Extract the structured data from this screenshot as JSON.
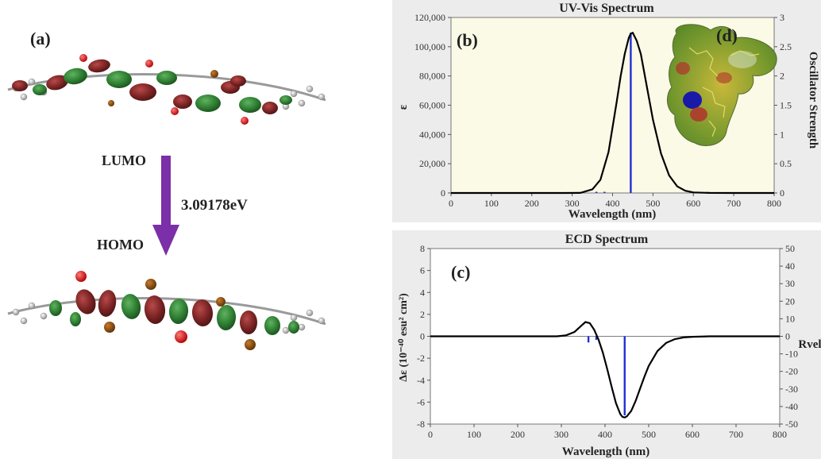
{
  "panel_a": {
    "label": "(a)",
    "lumo_label": "LUMO",
    "homo_label": "HOMO",
    "gap_label": "3.09178eV",
    "colors": {
      "arrow": "#7b2fa8",
      "lobe_red": "#7a2323",
      "lobe_green": "#2e7d32"
    }
  },
  "chart_data": [
    {
      "type": "line",
      "panel_label": "(b)",
      "inset_label": "(d)",
      "title": "UV-Vis Spectrum",
      "xlabel": "Wavelength (nm)",
      "ylabel": "ε",
      "y2label": "Oscillator Strength",
      "xlim": [
        0,
        800
      ],
      "ylim": [
        0,
        120000
      ],
      "y2lim": [
        0,
        3
      ],
      "xticks": [
        "0",
        "100",
        "200",
        "300",
        "400",
        "500",
        "600",
        "700",
        "800"
      ],
      "yticks": [
        "0",
        "20,000",
        "40,000",
        "60,000",
        "80,000",
        "100,000",
        "120,000"
      ],
      "y2ticks": [
        "0",
        "0.5",
        "1",
        "1.5",
        "2",
        "2.5",
        "3"
      ],
      "series": [
        {
          "x": [
            0,
            280,
            320,
            350,
            370,
            390,
            410,
            420,
            430,
            440,
            445,
            450,
            460,
            470,
            480,
            490,
            500,
            520,
            540,
            560,
            580,
            600,
            640,
            700,
            800
          ],
          "y": [
            0,
            0,
            60,
            2500,
            9000,
            28000,
            62000,
            80000,
            95000,
            106000,
            109000,
            109500,
            104000,
            95000,
            80000,
            65000,
            50000,
            27000,
            12000,
            4500,
            1500,
            400,
            50,
            0,
            0
          ]
        }
      ],
      "sticks": [
        {
          "x": 360,
          "f": 0.02
        },
        {
          "x": 380,
          "f": 0.02
        },
        {
          "x": 445,
          "f": 2.74
        }
      ],
      "colors": {
        "background": "#fbfae6",
        "curve": "#000000",
        "stick": "#1f2fd6"
      }
    },
    {
      "type": "line",
      "panel_label": "(c)",
      "title": "ECD Spectrum",
      "xlabel": "Wavelength (nm)",
      "ylabel": "Δε (10⁻⁴⁰ esu² cm²)",
      "y2label": "Rvel",
      "xlim": [
        0,
        800
      ],
      "ylim": [
        -8,
        8
      ],
      "y2lim": [
        -50,
        50
      ],
      "xticks": [
        "0",
        "100",
        "200",
        "300",
        "400",
        "500",
        "600",
        "700",
        "800"
      ],
      "yticks": [
        "-8",
        "-6",
        "-4",
        "-2",
        "0",
        "2",
        "4",
        "6",
        "8"
      ],
      "y2ticks": [
        "-50",
        "-40",
        "-30",
        "-20",
        "-10",
        "0",
        "10",
        "20",
        "30",
        "40",
        "50"
      ],
      "series": [
        {
          "x": [
            0,
            290,
            310,
            330,
            345,
            355,
            365,
            375,
            385,
            395,
            405,
            415,
            425,
            435,
            440,
            445,
            450,
            460,
            470,
            480,
            490,
            500,
            520,
            540,
            560,
            580,
            600,
            640,
            700,
            800
          ],
          "y": [
            0,
            0,
            0.08,
            0.4,
            0.95,
            1.3,
            1.2,
            0.6,
            -0.3,
            -1.5,
            -3.0,
            -4.6,
            -6.1,
            -7.1,
            -7.35,
            -7.4,
            -7.3,
            -6.8,
            -5.9,
            -4.8,
            -3.7,
            -2.7,
            -1.35,
            -0.6,
            -0.25,
            -0.1,
            -0.04,
            0,
            0,
            0
          ]
        }
      ],
      "sticks": [
        {
          "x": 362,
          "r": -3.5
        },
        {
          "x": 380,
          "r": -2
        },
        {
          "x": 445,
          "r": -45
        }
      ],
      "colors": {
        "background": "#ffffff",
        "curve": "#000000",
        "stick": "#1f2fd6"
      }
    }
  ]
}
